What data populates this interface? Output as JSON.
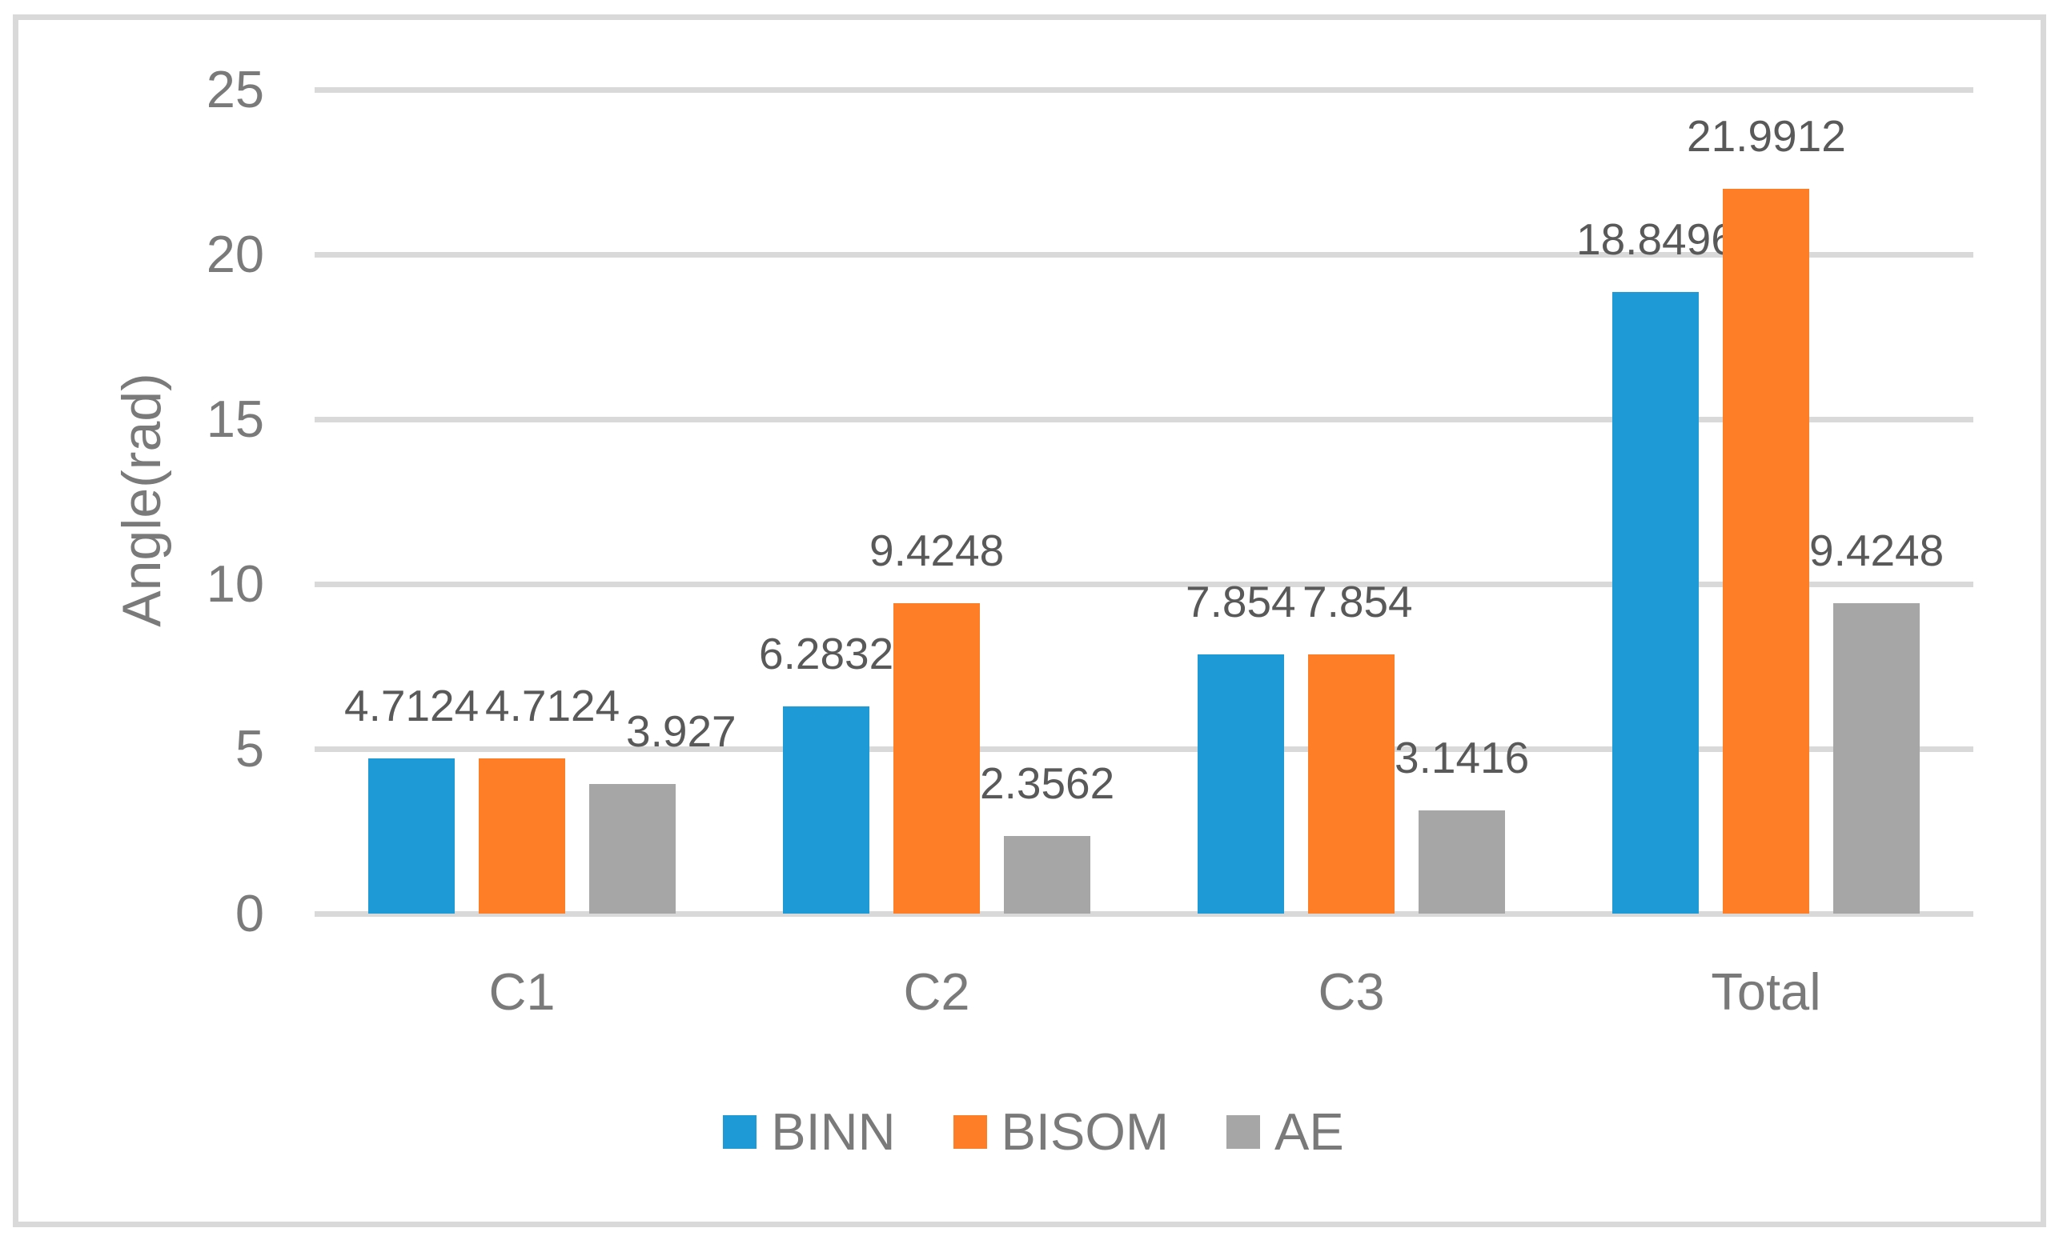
{
  "chart_data": {
    "type": "bar",
    "title": "",
    "xlabel": "",
    "ylabel": "Angle(rad)",
    "categories": [
      "C1",
      "C2",
      "C3",
      "Total"
    ],
    "series": [
      {
        "name": "BINN",
        "color": "#1e9bd7",
        "values": [
          4.7124,
          6.2832,
          7.854,
          18.8496
        ]
      },
      {
        "name": "BISOM",
        "color": "#fd7e27",
        "values": [
          4.7124,
          9.4248,
          7.854,
          21.9912
        ]
      },
      {
        "name": "AE",
        "color": "#a6a6a6",
        "values": [
          3.927,
          2.3562,
          3.1416,
          9.4248
        ]
      }
    ],
    "data_labels": [
      [
        "4.7124",
        "6.2832",
        "7.854",
        "18.8496"
      ],
      [
        "4.7124",
        "9.4248",
        "7.854",
        "21.9912"
      ],
      [
        "3.927",
        "2.3562",
        "3.1416",
        "9.4248"
      ]
    ],
    "ylim": [
      0,
      25
    ],
    "yticks": [
      "0",
      "5",
      "10",
      "15",
      "20",
      "25"
    ],
    "grid": true,
    "legend_position": "bottom",
    "colors": {
      "gridline": "#d9d9d9",
      "figure_border": "#d9d9d9",
      "axis_text": "#7a7a7a",
      "data_label_text": "#595959"
    }
  }
}
